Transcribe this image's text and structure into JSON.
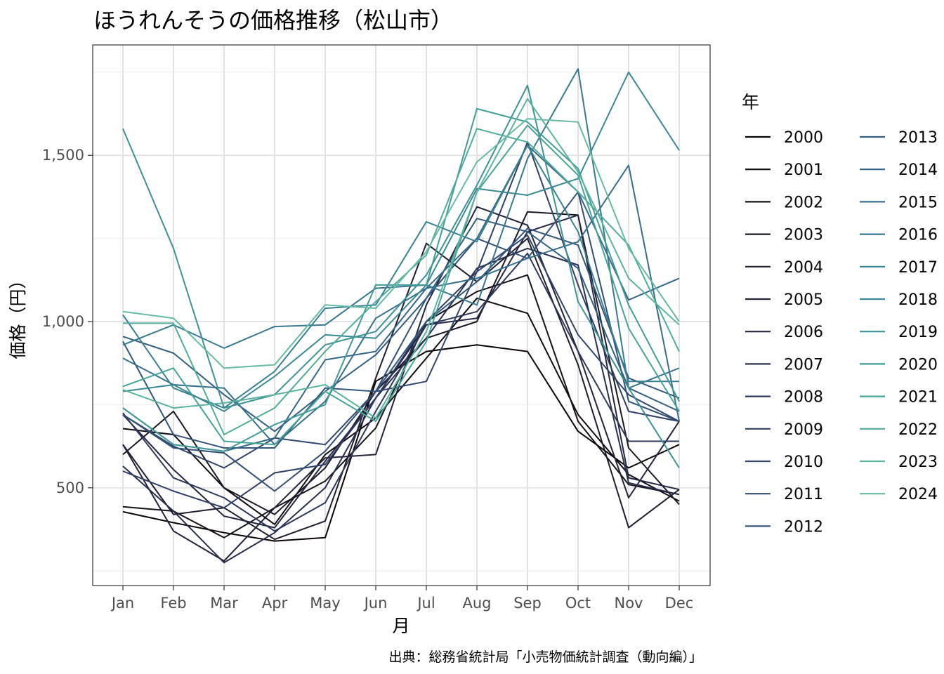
{
  "chart_data": {
    "type": "line",
    "title": "ほうれんそうの価格推移（松山市）",
    "xlabel": "月",
    "ylabel": "価格（円）",
    "caption": "出典：総務省統計局「小売物価統計調査（動向編）」",
    "legend_title": "年",
    "legend_position": "right",
    "categories": [
      "Jan",
      "Feb",
      "Mar",
      "Apr",
      "May",
      "Jun",
      "Jul",
      "Aug",
      "Sep",
      "Oct",
      "Nov",
      "Dec"
    ],
    "ylim": [
      200,
      1800
    ],
    "yticks": [
      500,
      1000,
      1500
    ],
    "ytick_labels": [
      "500",
      "1,000",
      "1,500"
    ],
    "series": [
      {
        "name": "2000",
        "color": "#0b0405",
        "values": [
          428,
          395,
          365,
          340,
          350,
          820,
          910,
          930,
          910,
          670,
          560,
          630
        ]
      },
      {
        "name": "2001",
        "color": "#110b0f",
        "values": [
          678,
          660,
          500,
          390,
          600,
          710,
          890,
          1070,
          1025,
          720,
          540,
          460
        ]
      },
      {
        "name": "2002",
        "color": "#17121a",
        "values": [
          443,
          430,
          350,
          440,
          520,
          680,
          1000,
          1090,
          1140,
          700,
          510,
          480
        ]
      },
      {
        "name": "2003",
        "color": "#1b1823",
        "values": [
          600,
          730,
          500,
          420,
          560,
          790,
          950,
          1000,
          1330,
          1320,
          620,
          450
        ]
      },
      {
        "name": "2004",
        "color": "#1f1d2d",
        "values": [
          630,
          420,
          440,
          345,
          400,
          830,
          1235,
          1120,
          1250,
          870,
          380,
          495
        ]
      },
      {
        "name": "2005",
        "color": "#222238",
        "values": [
          630,
          370,
          280,
          440,
          590,
          600,
          1050,
          1345,
          1290,
          910,
          470,
          700
        ]
      },
      {
        "name": "2006",
        "color": "#252743",
        "values": [
          720,
          555,
          415,
          380,
          580,
          770,
          990,
          1010,
          1270,
          1320,
          530,
          495
        ]
      },
      {
        "name": "2007",
        "color": "#29304f",
        "values": [
          565,
          430,
          275,
          365,
          500,
          770,
          950,
          1160,
          1220,
          1170,
          515,
          480
        ]
      },
      {
        "name": "2008",
        "color": "#2c375a",
        "values": [
          725,
          530,
          470,
          370,
          455,
          730,
          990,
          1030,
          1205,
          910,
          640,
          640
        ]
      },
      {
        "name": "2009",
        "color": "#2e3e64",
        "values": [
          550,
          490,
          440,
          545,
          570,
          770,
          1000,
          1150,
          1540,
          1110,
          730,
          700
        ]
      },
      {
        "name": "2010",
        "color": "#30466d",
        "values": [
          720,
          625,
          560,
          650,
          630,
          790,
          820,
          1150,
          1260,
          960,
          780,
          700
        ]
      },
      {
        "name": "2011",
        "color": "#314e75",
        "values": [
          720,
          620,
          605,
          490,
          610,
          790,
          1070,
          1250,
          1190,
          1390,
          760,
          700
        ]
      },
      {
        "name": "2012",
        "color": "#32567c",
        "values": [
          940,
          660,
          620,
          620,
          800,
          790,
          1000,
          1120,
          1280,
          1230,
          830,
          770
        ]
      },
      {
        "name": "2013",
        "color": "#335f82",
        "values": [
          955,
          905,
          780,
          670,
          790,
          900,
          1070,
          1310,
          1270,
          1160,
          800,
          730
        ]
      },
      {
        "name": "2014",
        "color": "#346788",
        "values": [
          740,
          630,
          610,
          650,
          885,
          910,
          1100,
          1250,
          1530,
          1390,
          1065,
          1130
        ]
      },
      {
        "name": "2015",
        "color": "#356f8c",
        "values": [
          890,
          810,
          800,
          630,
          760,
          1010,
          1100,
          1130,
          1190,
          1240,
          1470,
          700
        ]
      },
      {
        "name": "2016",
        "color": "#36788f",
        "values": [
          930,
          990,
          920,
          985,
          990,
          1100,
          1110,
          1050,
          1490,
          1760,
          800,
          860
        ]
      },
      {
        "name": "2017",
        "color": "#388192",
        "values": [
          1020,
          800,
          740,
          850,
          1040,
          1050,
          1300,
          1240,
          1530,
          1270,
          820,
          820
        ]
      },
      {
        "name": "2018",
        "color": "#3a8994",
        "values": [
          790,
          810,
          730,
          835,
          960,
          950,
          1110,
          1400,
          1380,
          1430,
          1750,
          1515
        ]
      },
      {
        "name": "2019",
        "color": "#3d9295",
        "values": [
          1580,
          1220,
          740,
          780,
          930,
          970,
          1140,
          1410,
          1710,
          1060,
          800,
          560
        ]
      },
      {
        "name": "2020",
        "color": "#419b97",
        "values": [
          740,
          630,
          610,
          690,
          750,
          1110,
          1110,
          1640,
          1600,
          1460,
          1050,
          760
        ]
      },
      {
        "name": "2021",
        "color": "#47a498",
        "values": [
          805,
          860,
          640,
          630,
          790,
          700,
          940,
          1390,
          1590,
          1440,
          980,
          730
        ]
      },
      {
        "name": "2022",
        "color": "#4fac9b",
        "values": [
          995,
          995,
          660,
          740,
          910,
          1060,
          1200,
          1580,
          1540,
          1390,
          1230,
          910
        ]
      },
      {
        "name": "2023",
        "color": "#5ab39f",
        "values": [
          795,
          740,
          755,
          780,
          810,
          710,
          970,
          1390,
          1670,
          1450,
          1130,
          990
        ]
      },
      {
        "name": "2024",
        "color": "#67baa4",
        "values": [
          1030,
          1010,
          860,
          870,
          1050,
          1040,
          1210,
          1480,
          1610,
          1600,
          1220,
          1000
        ]
      }
    ]
  }
}
